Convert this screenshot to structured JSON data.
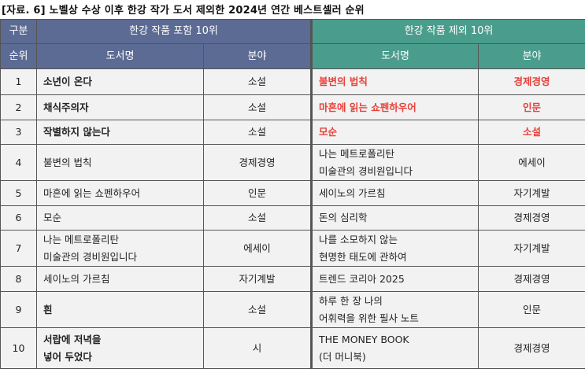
{
  "title": "[자료. 6] 노벨상 수상 이후 한강 작가 도서 제외한 2024년 연간 베스트셀러 순위",
  "header": {
    "category": "구분",
    "group_left": "한강 작품 포함 10위",
    "group_right": "한강 작품 제외 10위",
    "rank": "순위",
    "book_left": "도서명",
    "genre_left": "분야",
    "book_right": "도서명",
    "genre_right": "분야"
  },
  "colors": {
    "left_header": "#5c6b93",
    "right_header": "#4a9d8c",
    "highlight": "#e8413a"
  },
  "rows": [
    {
      "rank": "1",
      "left_title": [
        "소년이 온다"
      ],
      "left_genre": "소설",
      "right_title": [
        "불변의 법칙"
      ],
      "right_genre": "경제경영",
      "left_bold": true,
      "right_red": true
    },
    {
      "rank": "2",
      "left_title": [
        "채식주의자"
      ],
      "left_genre": "소설",
      "right_title": [
        "마흔에 읽는 쇼펜하우어"
      ],
      "right_genre": "인문",
      "left_bold": true,
      "right_red": true
    },
    {
      "rank": "3",
      "left_title": [
        "작별하지 않는다"
      ],
      "left_genre": "소설",
      "right_title": [
        "모순"
      ],
      "right_genre": "소설",
      "left_bold": true,
      "right_red": true
    },
    {
      "rank": "4",
      "left_title": [
        "불변의 법칙"
      ],
      "left_genre": "경제경영",
      "right_title": [
        "나는 메트로폴리탄",
        "미술관의 경비원입니다"
      ],
      "right_genre": "에세이"
    },
    {
      "rank": "5",
      "left_title": [
        "마흔에 읽는 쇼펜하우어"
      ],
      "left_genre": "인문",
      "right_title": [
        "세이노의 가르침"
      ],
      "right_genre": "자기계발"
    },
    {
      "rank": "6",
      "left_title": [
        "모순"
      ],
      "left_genre": "소설",
      "right_title": [
        "돈의 심리학"
      ],
      "right_genre": "경제경영"
    },
    {
      "rank": "7",
      "left_title": [
        "나는 메트로폴리탄",
        "미술관의 경비원입니다"
      ],
      "left_genre": "에세이",
      "right_title": [
        "나를 소모하지 않는",
        "현명한 태도에 관하여"
      ],
      "right_genre": "자기계발"
    },
    {
      "rank": "8",
      "left_title": [
        "세이노의 가르침"
      ],
      "left_genre": "자기계발",
      "right_title": [
        "트렌드 코리아 2025"
      ],
      "right_genre": "경제경영"
    },
    {
      "rank": "9",
      "left_title": [
        "흰"
      ],
      "left_genre": "소설",
      "right_title": [
        "하루 한 장 나의",
        "어휘력을 위한 필사 노트"
      ],
      "right_genre": "인문",
      "left_bold": true
    },
    {
      "rank": "10",
      "left_title": [
        "서랍에 저녁을",
        "넣어 두었다"
      ],
      "left_genre": "시",
      "right_title": [
        "THE MONEY BOOK",
        "(더 머니북)"
      ],
      "right_genre": "경제경영",
      "left_bold": true
    }
  ]
}
